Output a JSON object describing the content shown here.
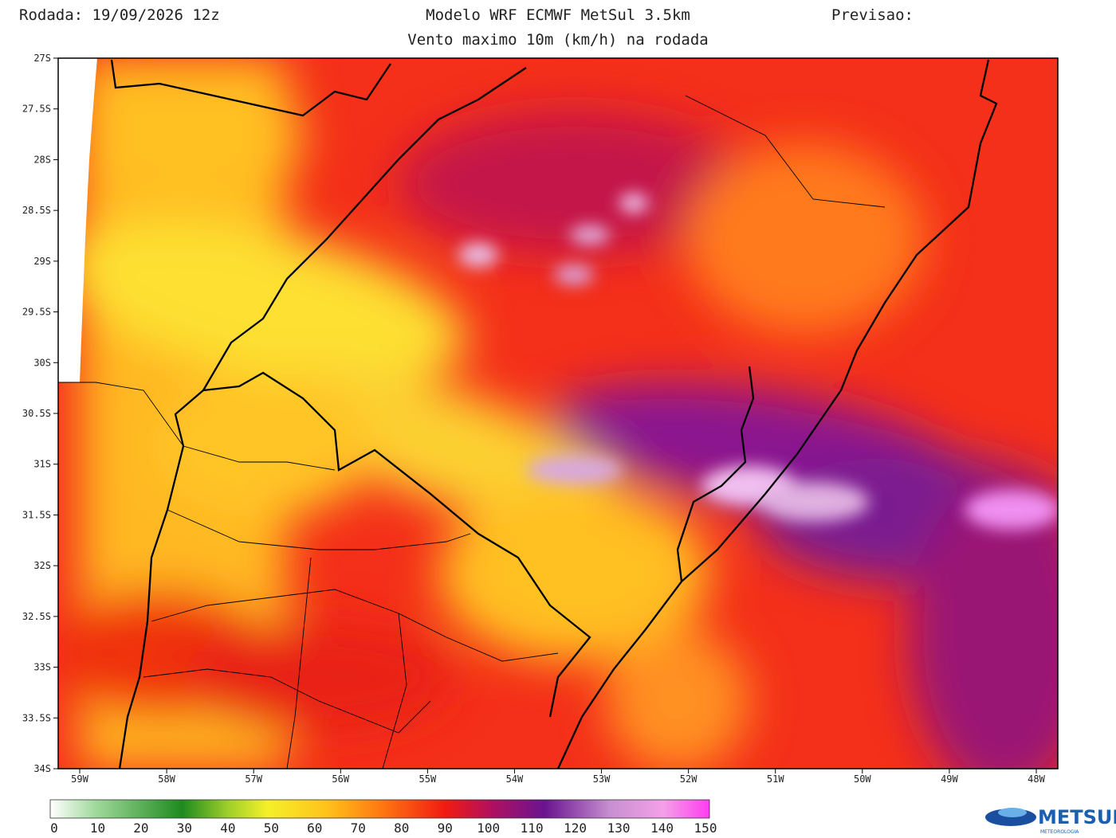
{
  "header": {
    "run": "Rodada: 19/09/2026 12z",
    "model": "Modelo WRF ECMWF MetSul 3.5km",
    "forecast": "Previsao:",
    "subtitle": "Vento maximo 10m (km/h) na rodada"
  },
  "axes": {
    "lat_labels": [
      "27S",
      "27.5S",
      "28S",
      "28.5S",
      "29S",
      "29.5S",
      "30S",
      "30.5S",
      "31S",
      "31.5S",
      "32S",
      "32.5S",
      "33S",
      "33.5S",
      "34S"
    ],
    "lon_labels": [
      "59W",
      "58W",
      "57W",
      "56W",
      "55W",
      "54W",
      "53W",
      "52W",
      "51W",
      "50W",
      "49W",
      "48W"
    ]
  },
  "colorbar": {
    "labels": [
      0,
      10,
      20,
      30,
      40,
      50,
      60,
      70,
      80,
      90,
      100,
      110,
      120,
      130,
      140,
      150
    ]
  },
  "logo": {
    "brand": "METSUL",
    "tagline": "METEOROLOGIA"
  }
}
